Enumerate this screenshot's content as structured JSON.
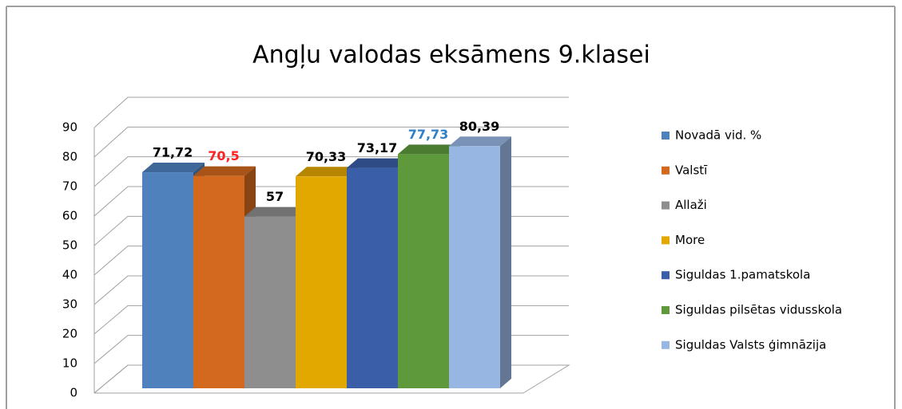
{
  "chart_data": {
    "type": "bar3d",
    "title": "Angļu valodas eksāmens 9.klasei",
    "categories": [
      null
    ],
    "series": [
      {
        "name": "Novadā vid. %",
        "color": "#4f81bd",
        "values": [
          71.72
        ],
        "value_labels": [
          "71,72"
        ],
        "label_color": "#000000"
      },
      {
        "name": "Valstī",
        "color": "#d2691f",
        "values": [
          70.5
        ],
        "value_labels": [
          "70,5"
        ],
        "label_color": "#ff2020"
      },
      {
        "name": "Allaži",
        "color": "#8e8e8e",
        "values": [
          57
        ],
        "value_labels": [
          "57"
        ],
        "label_color": "#000000"
      },
      {
        "name": "More",
        "color": "#e3a800",
        "values": [
          70.33
        ],
        "value_labels": [
          "70,33"
        ],
        "label_color": "#000000"
      },
      {
        "name": "Siguldas 1.pamatskola",
        "color": "#3a5ea8",
        "values": [
          73.17
        ],
        "value_labels": [
          "73,17"
        ],
        "label_color": "#000000"
      },
      {
        "name": "Siguldas pilsētas vidusskola",
        "color": "#5e9a3c",
        "values": [
          77.73
        ],
        "value_labels": [
          "77,73"
        ],
        "label_color": "#2f80c8"
      },
      {
        "name": "Siguldas Valsts ģimnāzija",
        "color": "#98b6e2",
        "values": [
          80.39
        ],
        "value_labels": [
          "80,39"
        ],
        "label_color": "#000000"
      }
    ],
    "ylim": [
      0,
      90
    ],
    "yticks": [
      0,
      10,
      20,
      30,
      40,
      50,
      60,
      70,
      80,
      90
    ],
    "grid": true,
    "legend": "right"
  }
}
